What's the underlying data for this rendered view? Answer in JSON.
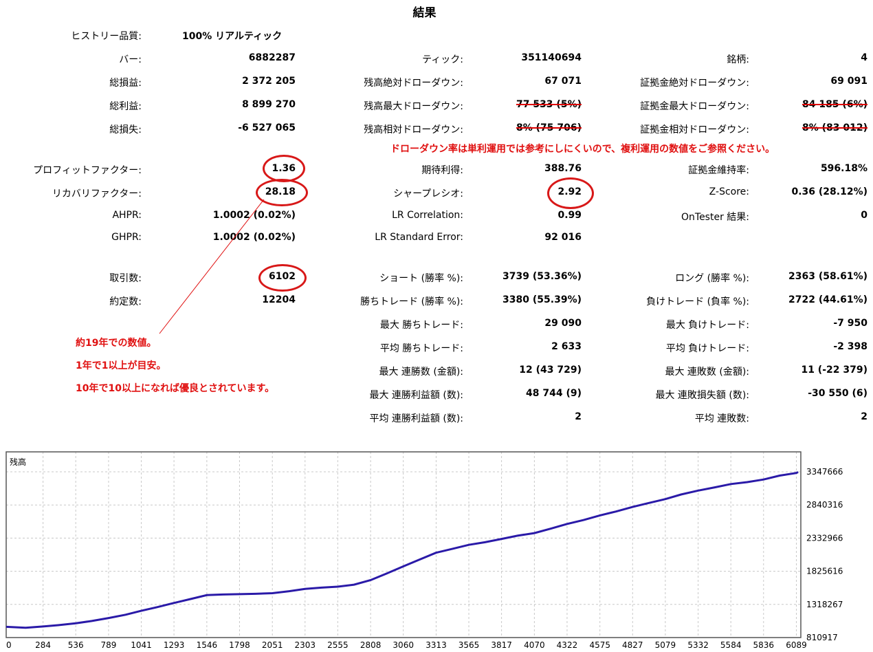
{
  "title": "結果",
  "history_quality": {
    "label": "ヒストリー品質:",
    "value": "100% リアルティック"
  },
  "col1": [
    {
      "label": "バー:",
      "value": "6882287"
    },
    {
      "label": "総損益:",
      "value": "2 372 205"
    },
    {
      "label": "総利益:",
      "value": "8 899 270"
    },
    {
      "label": "総損失:",
      "value": "-6 527 065"
    },
    {
      "label": "プロフィットファクター:",
      "value": "1.36"
    },
    {
      "label": "リカバリファクター:",
      "value": "28.18"
    },
    {
      "label": "AHPR:",
      "value": "1.0002 (0.02%)"
    },
    {
      "label": "GHPR:",
      "value": "1.0002 (0.02%)"
    },
    {
      "label": "取引数:",
      "value": "6102"
    },
    {
      "label": "約定数:",
      "value": "12204"
    }
  ],
  "col2": [
    {
      "label": "ティック:",
      "value": "351140694"
    },
    {
      "label": "残高絶対ドローダウン:",
      "value": "67 071"
    },
    {
      "label": "残高最大ドローダウン:",
      "value": "77 533 (5%)"
    },
    {
      "label": "残高相対ドローダウン:",
      "value": "8% (75 706)"
    },
    {
      "label": "期待利得:",
      "value": "388.76"
    },
    {
      "label": "シャープレシオ:",
      "value": "2.92"
    },
    {
      "label": "LR Correlation:",
      "value": "0.99"
    },
    {
      "label": "LR Standard Error:",
      "value": "92 016"
    },
    {
      "label": "ショート (勝率 %):",
      "value": "3739 (53.36%)"
    },
    {
      "label": "勝ちトレード (勝率 %):",
      "value": "3380 (55.39%)"
    },
    {
      "label": "最大 勝ちトレード:",
      "value": "29 090"
    },
    {
      "label": "平均 勝ちトレード:",
      "value": "2 633"
    },
    {
      "label": "最大 連勝数 (金額):",
      "value": "12 (43 729)"
    },
    {
      "label": "最大 連勝利益額 (数):",
      "value": "48 744 (9)"
    },
    {
      "label": "平均 連勝利益額 (数):",
      "value": "2"
    }
  ],
  "col3": [
    {
      "label": "銘柄:",
      "value": "4"
    },
    {
      "label": "証拠金絶対ドローダウン:",
      "value": "69 091"
    },
    {
      "label": "証拠金最大ドローダウン:",
      "value": "84 185 (6%)"
    },
    {
      "label": "証拠金相対ドローダウン:",
      "value": "8% (83 012)"
    },
    {
      "label": "証拠金維持率:",
      "value": "596.18%"
    },
    {
      "label": "Z-Score:",
      "value": "0.36 (28.12%)"
    },
    {
      "label": "OnTester 結果:",
      "value": "0"
    },
    {
      "label": "ロング (勝率 %):",
      "value": "2363 (58.61%)"
    },
    {
      "label": "負けトレード (負率 %):",
      "value": "2722 (44.61%)"
    },
    {
      "label": "最大 負けトレード:",
      "value": "-7 950"
    },
    {
      "label": "平均 負けトレード:",
      "value": "-2 398"
    },
    {
      "label": "最大 連敗数 (金額):",
      "value": "11 (-22 379)"
    },
    {
      "label": "最大 連敗損失額 (数):",
      "value": "-30 550 (6)"
    },
    {
      "label": "平均 連敗数:",
      "value": "2"
    }
  ],
  "notes": {
    "drawdown": "ドローダウン率は単利運用では参考にしにくいので、複利運用の数値をご参照ください。",
    "recovery_1": "約19年での数値。",
    "recovery_2": "1年で1以上が目安。",
    "recovery_3": "10年で10以上になれば優良とされています。"
  },
  "colors": {
    "annotation": "#e01010",
    "line": "#2a1aa8",
    "grid": "#c8c8c8"
  },
  "chart_data": {
    "type": "line",
    "title": "残高",
    "xlabel": "",
    "ylabel": "",
    "x_ticks": [
      "0",
      "284",
      "536",
      "789",
      "1041",
      "1293",
      "1546",
      "1798",
      "2051",
      "2303",
      "2555",
      "2808",
      "3060",
      "3313",
      "3565",
      "3817",
      "4070",
      "4322",
      "4575",
      "4827",
      "5079",
      "5332",
      "5584",
      "5836",
      "6089"
    ],
    "y_ticks": [
      "3347666",
      "2840316",
      "2332966",
      "1825616",
      "1318267",
      "810917"
    ],
    "ylim": [
      810917,
      3347666
    ],
    "xlim": [
      0,
      6102
    ],
    "grid": true,
    "series": [
      {
        "x": [
          0,
          150,
          284,
          400,
          536,
          660,
          789,
          920,
          1041,
          1160,
          1293,
          1420,
          1546,
          1670,
          1798,
          1920,
          2051,
          2180,
          2303,
          2430,
          2555,
          2680,
          2808,
          2930,
          3060,
          3180,
          3313,
          3440,
          3565,
          3690,
          3817,
          3940,
          4070,
          4200,
          4322,
          4450,
          4575,
          4700,
          4827,
          4950,
          5079,
          5200,
          5332,
          5460,
          5584,
          5710,
          5836,
          5960,
          6089,
          6102
        ],
        "values": [
          975000,
          960000,
          980000,
          1000000,
          1030000,
          1065000,
          1110000,
          1160000,
          1220000,
          1275000,
          1340000,
          1400000,
          1460000,
          1470000,
          1475000,
          1480000,
          1490000,
          1520000,
          1555000,
          1575000,
          1590000,
          1620000,
          1690000,
          1790000,
          1900000,
          2000000,
          2110000,
          2170000,
          2230000,
          2270000,
          2320000,
          2370000,
          2410000,
          2480000,
          2550000,
          2610000,
          2680000,
          2740000,
          2810000,
          2870000,
          2930000,
          3000000,
          3060000,
          3110000,
          3160000,
          3190000,
          3230000,
          3290000,
          3330000,
          3345000
        ]
      }
    ]
  }
}
